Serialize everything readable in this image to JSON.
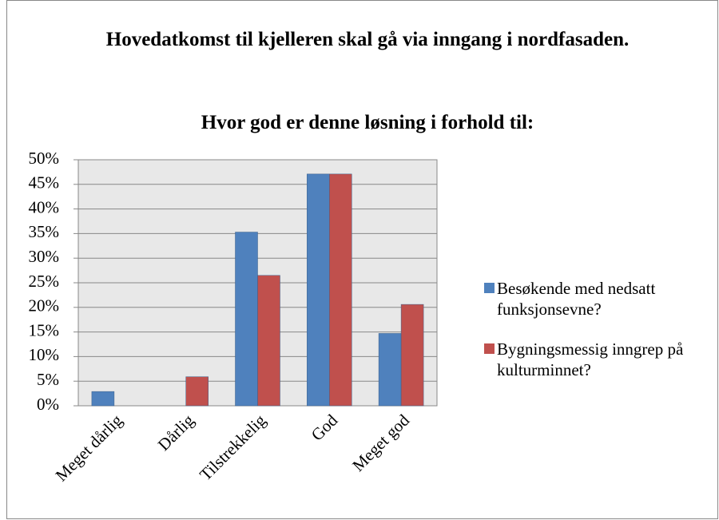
{
  "chart_data": {
    "type": "bar",
    "title": "Hovedatkomst til kjelleren skal gå via inngang i nordfasaden.",
    "subtitle": "Hvor god er denne løsning i forhold til:",
    "categories": [
      "Meget dårlig",
      "Dårlig",
      "Tilstrekkelig",
      "God",
      "Meget god"
    ],
    "series": [
      {
        "name": "Besøkende med nedsatt funksjonsevne?",
        "color": "#4f81bd",
        "values": [
          2.9,
          0,
          35.3,
          47.1,
          14.7
        ]
      },
      {
        "name": "Bygningsmessig inngrep på kulturminnet?",
        "color": "#c0504d",
        "values": [
          0,
          5.9,
          26.5,
          47.1,
          20.6
        ]
      }
    ],
    "ylim": [
      0,
      50
    ],
    "yticks": [
      {
        "value": 0,
        "label": "0%"
      },
      {
        "value": 5,
        "label": "5%"
      },
      {
        "value": 10,
        "label": "10%"
      },
      {
        "value": 15,
        "label": "15%"
      },
      {
        "value": 20,
        "label": "20%"
      },
      {
        "value": 25,
        "label": "25%"
      },
      {
        "value": 30,
        "label": "30%"
      },
      {
        "value": 35,
        "label": "35%"
      },
      {
        "value": 40,
        "label": "40%"
      },
      {
        "value": 45,
        "label": "45%"
      },
      {
        "value": 50,
        "label": "50%"
      }
    ],
    "grid": true,
    "legend": "right"
  }
}
